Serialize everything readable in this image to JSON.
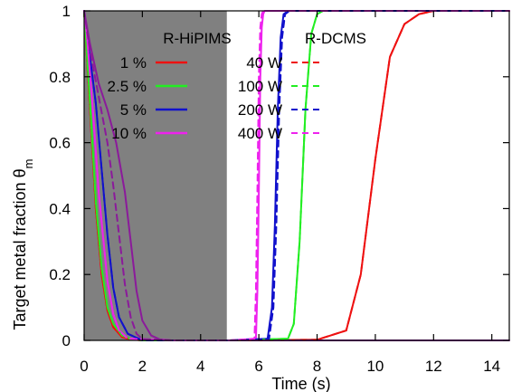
{
  "chart_data": {
    "type": "line",
    "title": "",
    "xlabel": "Time (s)",
    "ylabel_main": "Target metal fraction θ",
    "ylabel_sub": "m",
    "xlim": [
      0,
      14.6
    ],
    "ylim": [
      0,
      1.0
    ],
    "xticks": [
      0,
      2,
      4,
      6,
      8,
      10,
      12,
      14
    ],
    "yticks": [
      0,
      0.2,
      0.4,
      0.6,
      0.8,
      1.0
    ],
    "xtick_labels": [
      "0",
      "2",
      "4",
      "6",
      "8",
      "10",
      "12",
      "14"
    ],
    "ytick_labels": [
      "0",
      "0.2",
      "0.4",
      "0.6",
      "0.8",
      "1"
    ],
    "grid": false,
    "legend_placement": "top, two columns",
    "legend_headers": [
      "R-HiPIMS",
      "R-DCMS"
    ],
    "shaded_region": {
      "x": [
        0,
        4.9
      ],
      "y": [
        0,
        1
      ],
      "color": "#808080"
    },
    "colors": {
      "red": "#ee1111",
      "green": "#22ee22",
      "blue": "#1111cc",
      "magenta": "#ee22ee",
      "purple": "#8b1a9b"
    },
    "series": [
      {
        "name": "1 %",
        "group": "R-HiPIMS",
        "color": "#ee1111",
        "dash": "solid",
        "x": [
          0,
          0.2,
          0.4,
          0.6,
          0.8,
          1.0,
          1.3,
          1.6,
          2.0,
          3,
          5,
          8,
          9,
          9.5,
          10,
          10.5,
          11,
          11.5,
          12,
          14.6
        ],
        "y": [
          1.0,
          0.7,
          0.4,
          0.2,
          0.09,
          0.04,
          0.01,
          0.003,
          0,
          0,
          0,
          0.002,
          0.03,
          0.2,
          0.55,
          0.86,
          0.96,
          0.99,
          1.0,
          1.0
        ]
      },
      {
        "name": "2.5 %",
        "group": "R-HiPIMS",
        "color": "#22ee22",
        "dash": "solid",
        "x": [
          0,
          0.2,
          0.4,
          0.6,
          0.8,
          1.0,
          1.3,
          1.6,
          2.0,
          3,
          5,
          7.0,
          7.2,
          7.4,
          7.6,
          7.8,
          8.0,
          8.2,
          14.6
        ],
        "y": [
          1.0,
          0.72,
          0.42,
          0.22,
          0.1,
          0.05,
          0.015,
          0.004,
          0,
          0,
          0,
          0.005,
          0.05,
          0.3,
          0.7,
          0.93,
          0.99,
          1.0,
          1.0
        ]
      },
      {
        "name": "5 %",
        "group": "R-HiPIMS",
        "color": "#1111cc",
        "dash": "solid",
        "x": [
          0,
          0.2,
          0.4,
          0.6,
          0.8,
          1.0,
          1.2,
          1.5,
          2.0,
          3,
          5,
          6.3,
          6.45,
          6.55,
          6.65,
          6.75,
          6.85,
          7.0,
          14.6
        ],
        "y": [
          1.0,
          0.86,
          0.72,
          0.52,
          0.32,
          0.16,
          0.07,
          0.02,
          0,
          0,
          0,
          0.005,
          0.1,
          0.35,
          0.7,
          0.92,
          0.99,
          1.0,
          1.0
        ]
      },
      {
        "name": "10 %",
        "group": "R-HiPIMS",
        "color": "#ee22ee",
        "dash": "solid",
        "x": [
          0,
          0.1,
          0.3,
          0.5,
          0.8,
          1.0,
          1.2,
          1.5,
          3,
          5,
          5.9,
          5.95,
          6.0,
          6.05,
          6.1,
          6.15,
          6.2,
          6.3,
          14.6
        ],
        "y": [
          1.0,
          0.92,
          0.7,
          0.45,
          0.18,
          0.08,
          0.03,
          0.005,
          0,
          0,
          0.005,
          0.15,
          0.45,
          0.8,
          0.95,
          0.99,
          1.0,
          1.0,
          1.0
        ]
      },
      {
        "name": "10 % (dark)",
        "group": "R-HiPIMS",
        "color": "#8b1a9b",
        "dash": "solid",
        "legend": false,
        "x": [
          0,
          0.2,
          0.5,
          0.8,
          1.1,
          1.4,
          1.6,
          1.8,
          2.0,
          2.3,
          2.6,
          3.0,
          5,
          14.6
        ],
        "y": [
          1.0,
          0.9,
          0.78,
          0.7,
          0.6,
          0.45,
          0.3,
          0.15,
          0.06,
          0.015,
          0.003,
          0,
          0,
          0
        ]
      },
      {
        "name": "40 W",
        "group": "R-DCMS",
        "color": "#ee1111",
        "dash": "dashed",
        "x": [
          0,
          0.2,
          0.4,
          0.6,
          0.8,
          1.0,
          1.3,
          1.6,
          2.0,
          3,
          5,
          8,
          9,
          9.5,
          10,
          10.5,
          11,
          11.5,
          12,
          14.6
        ],
        "y": [
          1.0,
          0.7,
          0.4,
          0.2,
          0.09,
          0.04,
          0.01,
          0.003,
          0,
          0,
          0,
          0.002,
          0.03,
          0.2,
          0.55,
          0.86,
          0.96,
          0.99,
          1.0,
          1.0
        ]
      },
      {
        "name": "100 W",
        "group": "R-DCMS",
        "color": "#22ee22",
        "dash": "dashed",
        "x": [
          0,
          0.2,
          0.4,
          0.6,
          0.8,
          1.0,
          1.3,
          1.6,
          2.0,
          3,
          5,
          7.0,
          7.2,
          7.4,
          7.6,
          7.8,
          8.0,
          8.2,
          14.6
        ],
        "y": [
          1.0,
          0.72,
          0.42,
          0.22,
          0.1,
          0.05,
          0.015,
          0.004,
          0,
          0,
          0,
          0.005,
          0.05,
          0.3,
          0.7,
          0.93,
          0.99,
          1.0,
          1.0
        ]
      },
      {
        "name": "200 W",
        "group": "R-DCMS",
        "color": "#1111cc",
        "dash": "dashed",
        "x": [
          0,
          0.2,
          0.4,
          0.6,
          0.8,
          1.0,
          1.2,
          1.5,
          2.0,
          3,
          5,
          6.35,
          6.5,
          6.6,
          6.7,
          6.8,
          6.9,
          7.05,
          14.6
        ],
        "y": [
          1.0,
          0.86,
          0.72,
          0.52,
          0.32,
          0.16,
          0.07,
          0.02,
          0,
          0,
          0,
          0.005,
          0.1,
          0.35,
          0.7,
          0.92,
          0.99,
          1.0,
          1.0
        ]
      },
      {
        "name": "400 W",
        "group": "R-DCMS",
        "color": "#ee22ee",
        "dash": "dashed",
        "x": [
          0,
          0.1,
          0.3,
          0.5,
          0.8,
          1.0,
          1.2,
          1.5,
          3,
          5,
          5.85,
          5.9,
          5.95,
          6.0,
          6.05,
          6.1,
          6.15,
          6.25,
          14.6
        ],
        "y": [
          1.0,
          0.92,
          0.7,
          0.45,
          0.18,
          0.08,
          0.03,
          0.005,
          0,
          0,
          0.005,
          0.15,
          0.45,
          0.8,
          0.95,
          0.99,
          1.0,
          1.0,
          1.0
        ]
      },
      {
        "name": "400 W (dark)",
        "group": "R-DCMS",
        "color": "#8b1a9b",
        "dash": "dashed",
        "legend": false,
        "x": [
          0,
          0.2,
          0.5,
          0.8,
          1.0,
          1.2,
          1.4,
          1.6,
          1.8,
          2.0,
          3,
          14.6
        ],
        "y": [
          1.0,
          0.88,
          0.74,
          0.6,
          0.47,
          0.32,
          0.17,
          0.07,
          0.02,
          0.004,
          0,
          0
        ]
      }
    ]
  }
}
